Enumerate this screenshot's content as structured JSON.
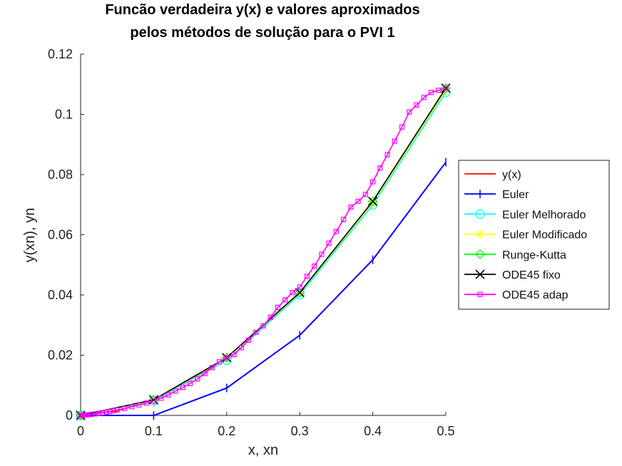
{
  "chart_data": {
    "type": "line",
    "title": [
      "Funcão verdadeira y(x) e valores aproximados",
      "pelos métodos de solução para o PVI 1"
    ],
    "xlabel": "x, xn",
    "ylabel": "y(xn), yn",
    "xlim": [
      0,
      0.5
    ],
    "ylim": [
      0,
      0.12
    ],
    "xticks": [
      "0",
      "0.1",
      "0.2",
      "0.3",
      "0.4",
      "0.5"
    ],
    "yticks": [
      "0",
      "0.02",
      "0.04",
      "0.06",
      "0.08",
      "0.1",
      "0.12"
    ],
    "grid": false,
    "legend_position": "right",
    "series": [
      {
        "name": "y(x)",
        "color": "#ff0000",
        "marker": "none",
        "x": [
          0,
          0.05,
          0.1,
          0.15,
          0.2,
          0.25,
          0.3,
          0.35,
          0.4,
          0.45,
          0.5
        ],
        "y": [
          0,
          0.0015,
          0.0052,
          0.0115,
          0.0192,
          0.0295,
          0.0408,
          0.0553,
          0.0711,
          0.0894,
          0.1087
        ]
      },
      {
        "name": "Euler",
        "color": "#0000ff",
        "marker": "plus",
        "x": [
          0,
          0.1,
          0.2,
          0.3,
          0.4,
          0.5
        ],
        "y": [
          0,
          0,
          0.0091,
          0.0266,
          0.0517,
          0.0841
        ]
      },
      {
        "name": "Euler Melhorado",
        "color": "#00ffff",
        "marker": "circle",
        "x": [
          0,
          0.1,
          0.2,
          0.3,
          0.4,
          0.5
        ],
        "y": [
          0,
          0.0048,
          0.0183,
          0.0401,
          0.0699,
          0.1073
        ]
      },
      {
        "name": "Euler Modificado",
        "color": "#ffff00",
        "marker": "asterisk",
        "x": [
          0,
          0.1,
          0.2,
          0.3,
          0.4,
          0.5
        ],
        "y": [
          0,
          0.0051,
          0.019,
          0.0406,
          0.0706,
          0.108
        ]
      },
      {
        "name": "Runge-Kutta",
        "color": "#00ff00",
        "marker": "diamond",
        "x": [
          0,
          0.1,
          0.2,
          0.3,
          0.4,
          0.5
        ],
        "y": [
          0,
          0.0052,
          0.0192,
          0.0408,
          0.0711,
          0.1087
        ]
      },
      {
        "name": "ODE45 fixo",
        "color": "#000000",
        "marker": "cross",
        "x": [
          0,
          0.1,
          0.2,
          0.3,
          0.4,
          0.5
        ],
        "y": [
          0,
          0.0052,
          0.0192,
          0.0408,
          0.0711,
          0.1087
        ]
      },
      {
        "name": "ODE45 adap",
        "color": "#ff00ff",
        "marker": "square",
        "x": [
          0,
          0.0025,
          0.005,
          0.0075,
          0.01,
          0.015,
          0.02,
          0.025,
          0.03,
          0.035,
          0.04,
          0.045,
          0.05,
          0.06,
          0.07,
          0.08,
          0.09,
          0.1,
          0.11,
          0.12,
          0.13,
          0.14,
          0.15,
          0.16,
          0.17,
          0.18,
          0.19,
          0.2,
          0.21,
          0.22,
          0.23,
          0.24,
          0.25,
          0.26,
          0.27,
          0.28,
          0.29,
          0.3,
          0.31,
          0.32,
          0.33,
          0.34,
          0.35,
          0.36,
          0.37,
          0.38,
          0.39,
          0.4,
          0.41,
          0.42,
          0.43,
          0.44,
          0.45,
          0.46,
          0.47,
          0.48,
          0.49,
          0.5
        ],
        "y": [
          0,
          2e-05,
          0.0001,
          0.00018,
          0.0002,
          0.00035,
          0.0005,
          0.0007,
          0.0009,
          0.0011,
          0.0013,
          0.0016,
          0.0018,
          0.0023,
          0.0029,
          0.0035,
          0.0041,
          0.0048,
          0.0057,
          0.0068,
          0.0081,
          0.0093,
          0.0106,
          0.0121,
          0.0139,
          0.0159,
          0.0178,
          0.0192,
          0.0202,
          0.0225,
          0.025,
          0.0276,
          0.0298,
          0.0326,
          0.0359,
          0.0384,
          0.0408,
          0.0426,
          0.0462,
          0.0496,
          0.0535,
          0.0572,
          0.0611,
          0.0651,
          0.0692,
          0.0711,
          0.0734,
          0.0776,
          0.0822,
          0.0866,
          0.0911,
          0.0958,
          0.1008,
          0.1031,
          0.1056,
          0.1073,
          0.108,
          0.1087
        ]
      }
    ]
  }
}
